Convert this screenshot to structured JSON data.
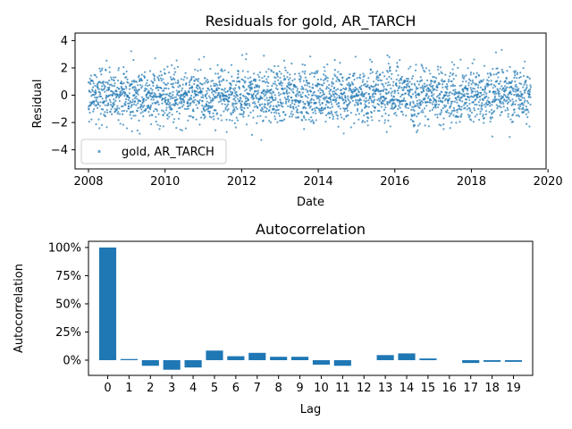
{
  "chart_data": [
    {
      "type": "scatter",
      "title": "Residuals for gold, AR_TARCH",
      "xlabel": "Date",
      "ylabel": "Residual",
      "xlim": [
        2007.65,
        2019.95
      ],
      "ylim": [
        -5.4,
        4.55
      ],
      "x_ticks": [
        2008,
        2010,
        2012,
        2014,
        2016,
        2018,
        2020
      ],
      "x_tick_labels": [
        "2008",
        "2010",
        "2012",
        "2014",
        "2016",
        "2018",
        "2020"
      ],
      "y_ticks": [
        -4,
        -2,
        0,
        2,
        4
      ],
      "y_tick_labels": [
        "−4",
        "−2",
        "0",
        "2",
        "4"
      ],
      "series": [
        {
          "name": "gold, AR_TARCH",
          "color": "#1f77b4",
          "x_range": [
            2008.0,
            2019.55
          ],
          "n_points": 2900,
          "std": 1.0,
          "min": -4.9,
          "max": 4.2
        }
      ],
      "legend": {
        "position": "lower-left"
      },
      "grid": false
    },
    {
      "type": "bar",
      "title": "Autocorrelation",
      "xlabel": "Lag",
      "ylabel": "Autocorrelation",
      "categories": [
        "0",
        "1",
        "2",
        "3",
        "4",
        "5",
        "6",
        "7",
        "8",
        "9",
        "10",
        "11",
        "12",
        "13",
        "14",
        "15",
        "16",
        "17",
        "18",
        "19"
      ],
      "values": [
        1.0,
        0.01,
        -0.05,
        -0.085,
        -0.065,
        0.085,
        0.035,
        0.065,
        0.03,
        0.03,
        -0.04,
        -0.05,
        0.0,
        0.045,
        0.06,
        0.015,
        0.0,
        -0.025,
        -0.015,
        -0.015
      ],
      "ylim": [
        -0.135,
        1.055
      ],
      "y_ticks": [
        0,
        0.25,
        0.5,
        0.75,
        1.0
      ],
      "y_tick_labels": [
        "0%",
        "25%",
        "50%",
        "75%",
        "100%"
      ],
      "color": "#1f77b4",
      "grid": false
    }
  ]
}
